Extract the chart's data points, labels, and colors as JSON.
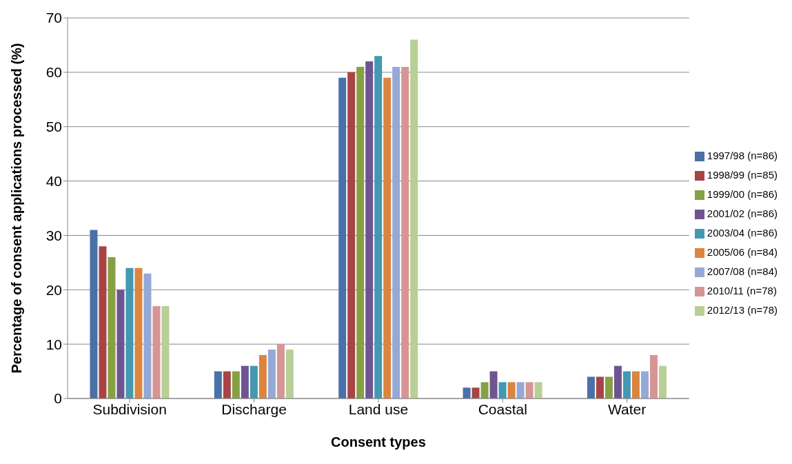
{
  "chart_data": {
    "type": "bar",
    "xlabel": "Consent types",
    "ylabel": "Percentage of consent applications processed (%)",
    "categories": [
      "Subdivision",
      "Discharge",
      "Land use",
      "Coastal",
      "Water"
    ],
    "series": [
      {
        "name": "1997/98 (n=86)",
        "color": "#4a70a8",
        "values": [
          31,
          5,
          59,
          2,
          4
        ]
      },
      {
        "name": "1998/99 (n=85)",
        "color": "#a84444",
        "values": [
          28,
          5,
          60,
          2,
          4
        ]
      },
      {
        "name": "1999/00 (n=86)",
        "color": "#86a044",
        "values": [
          26,
          5,
          61,
          3,
          4
        ]
      },
      {
        "name": "2001/02 (n=86)",
        "color": "#6e5592",
        "values": [
          20,
          6,
          62,
          5,
          6
        ]
      },
      {
        "name": "2003/04 (n=86)",
        "color": "#4399b1",
        "values": [
          24,
          6,
          63,
          3,
          5
        ]
      },
      {
        "name": "2005/06 (n=84)",
        "color": "#db8540",
        "values": [
          24,
          8,
          59,
          3,
          5
        ]
      },
      {
        "name": "2007/08 (n=84)",
        "color": "#94a9d6",
        "values": [
          23,
          9,
          61,
          3,
          5
        ]
      },
      {
        "name": "2010/11 (n=78)",
        "color": "#d69594",
        "values": [
          17,
          10,
          61,
          3,
          8
        ]
      },
      {
        "name": "2012/13 (n=78)",
        "color": "#b8cf95",
        "values": [
          17,
          9,
          66,
          3,
          6
        ]
      }
    ],
    "ylim": [
      0,
      70
    ],
    "yticks": [
      0,
      10,
      20,
      30,
      40,
      50,
      60,
      70
    ],
    "grid": "y",
    "legend": "right"
  }
}
